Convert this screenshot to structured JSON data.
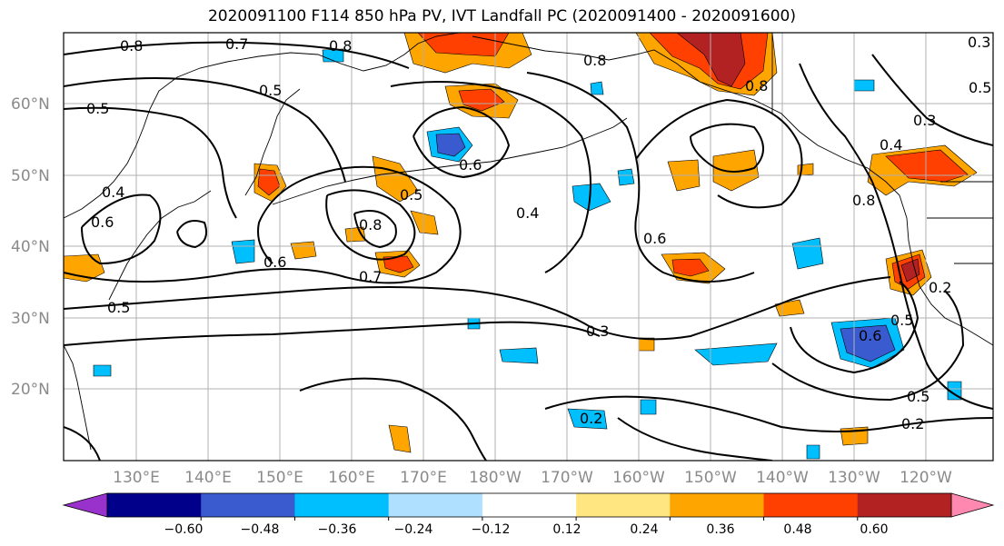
{
  "title": "2020091100 F114 850 hPa PV, IVT Landfall PC (2020091400 - 2020091600)",
  "lat_labels": [
    "60°N",
    "50°N",
    "40°N",
    "30°N",
    "20°N"
  ],
  "lon_labels": [
    "130°E",
    "140°E",
    "150°E",
    "160°E",
    "170°E",
    "180°W",
    "170°W",
    "160°W",
    "150°W",
    "140°W",
    "130°W",
    "120°W"
  ],
  "colorbar": {
    "ticks": [
      "−0.60",
      "−0.48",
      "−0.36",
      "−0.24",
      "−0.12",
      "0.12",
      "0.24",
      "0.36",
      "0.48",
      "0.60"
    ],
    "colors": [
      "#9932cc",
      "#00008b",
      "#3a5bcf",
      "#00bfff",
      "#b0e0ff",
      "#ffffff",
      "#ffe680",
      "#ffa500",
      "#ff4000",
      "#b22222",
      "#ff88b0"
    ]
  },
  "contour_labels": [
    "0.8",
    "0.7",
    "0.8",
    "0.5",
    "0.5",
    "0.4",
    "0.6",
    "0.5",
    "0.6",
    "0.8",
    "0.7",
    "0.5",
    "0.6",
    "0.4",
    "0.6",
    "0.8",
    "0.3",
    "0.8",
    "0.3",
    "0.4",
    "0.8",
    "0.6",
    "0.5",
    "0.5",
    "0.2",
    "0.2",
    "0.3",
    "0.2",
    "0.5"
  ]
}
